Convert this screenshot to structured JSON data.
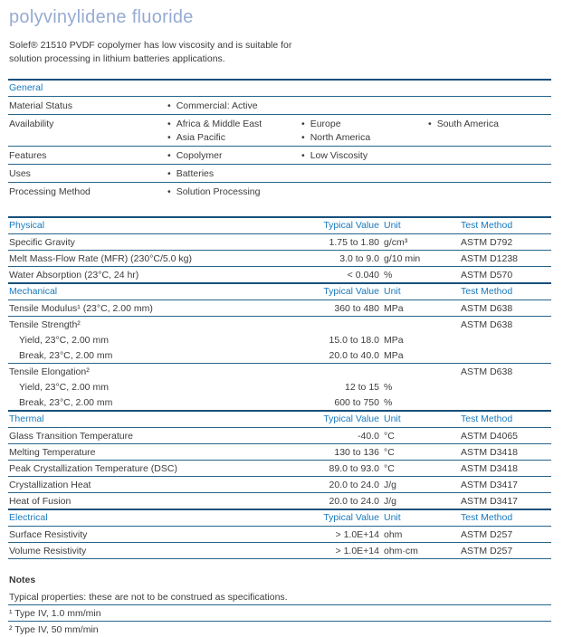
{
  "colors": {
    "accent": "#1779be",
    "title_blue": "#96abd3",
    "section_line": "#17507c",
    "row_line": "#26658a",
    "text": "#3c3c3d"
  },
  "page": {
    "title": "polyvinylidene fluoride",
    "description": "Solef® 21510 PVDF copolymer has low viscosity and is suitable for solution processing in lithium batteries applications."
  },
  "columns": {
    "value": "Typical Value",
    "unit": "Unit",
    "method": "Test Method"
  },
  "general": {
    "title": "General",
    "rows": [
      {
        "label": "Material Status",
        "cols": [
          [
            "Commercial: Active"
          ],
          [],
          []
        ]
      },
      {
        "label": "Availability",
        "cols": [
          [
            "Africa & Middle East",
            "Asia Pacific"
          ],
          [
            "Europe",
            "North America"
          ],
          [
            "South America"
          ]
        ]
      },
      {
        "label": "Features",
        "cols": [
          [
            "Copolymer"
          ],
          [
            "Low Viscosity"
          ],
          []
        ]
      },
      {
        "label": "Uses",
        "cols": [
          [
            "Batteries"
          ],
          [],
          []
        ]
      },
      {
        "label": "Processing Method",
        "cols": [
          [
            "Solution Processing"
          ],
          [],
          []
        ]
      }
    ]
  },
  "property_sections": [
    {
      "title": "Physical",
      "rows": [
        {
          "name": "Specific Gravity",
          "value": "1.75 to 1.80",
          "unit": "g/cm³",
          "method": "ASTM D792"
        },
        {
          "name": "Melt Mass-Flow Rate (MFR) (230°C/5.0 kg)",
          "value": "3.0 to 9.0",
          "unit": "g/10 min",
          "method": "ASTM D1238"
        },
        {
          "name": "Water Absorption (23°C, 24 hr)",
          "value": "< 0.040",
          "unit": "%",
          "method": "ASTM D570"
        }
      ]
    },
    {
      "title": "Mechanical",
      "rows": [
        {
          "name": "Tensile Modulus¹ (23°C, 2.00 mm)",
          "value": "360 to 480",
          "unit": "MPa",
          "method": "ASTM D638"
        },
        {
          "name": "Tensile Strength²",
          "value": "",
          "unit": "",
          "method": "ASTM D638"
        },
        {
          "name": "Yield, 23°C, 2.00 mm",
          "value": "15.0 to 18.0",
          "unit": "MPa",
          "method": "",
          "sub": true
        },
        {
          "name": "Break, 23°C, 2.00 mm",
          "value": "20.0 to 40.0",
          "unit": "MPa",
          "method": "",
          "sub": true
        },
        {
          "name": "Tensile Elongation²",
          "value": "",
          "unit": "",
          "method": "ASTM D638"
        },
        {
          "name": "Yield, 23°C, 2.00 mm",
          "value": "12 to 15",
          "unit": "%",
          "method": "",
          "sub": true
        },
        {
          "name": "Break, 23°C, 2.00 mm",
          "value": "600 to 750",
          "unit": "%",
          "method": "",
          "sub": true
        }
      ]
    },
    {
      "title": "Thermal",
      "rows": [
        {
          "name": "Glass Transition Temperature",
          "value": "-40.0",
          "unit": "°C",
          "method": "ASTM D4065"
        },
        {
          "name": "Melting Temperature",
          "value": "130 to 136",
          "unit": "°C",
          "method": "ASTM D3418"
        },
        {
          "name": "Peak Crystallization Temperature (DSC)",
          "value": "89.0 to 93.0",
          "unit": "°C",
          "method": "ASTM D3418"
        },
        {
          "name": "Crystallization Heat",
          "value": "20.0 to 24.0",
          "unit": "J/g",
          "method": "ASTM D3417"
        },
        {
          "name": "Heat of Fusion",
          "value": "20.0 to 24.0",
          "unit": "J/g",
          "method": "ASTM D3417"
        }
      ]
    },
    {
      "title": "Electrical",
      "rows": [
        {
          "name": "Surface Resistivity",
          "value": "> 1.0E+14",
          "unit": "ohm",
          "method": "ASTM D257"
        },
        {
          "name": "Volume Resistivity",
          "value": "> 1.0E+14",
          "unit": "ohm·cm",
          "method": "ASTM D257"
        }
      ]
    }
  ],
  "notes": {
    "title": "Notes",
    "rows": [
      "Typical properties: these are not to be construed as specifications.",
      "¹ Type IV, 1.0 mm/min",
      "² Type IV, 50 mm/min"
    ]
  }
}
